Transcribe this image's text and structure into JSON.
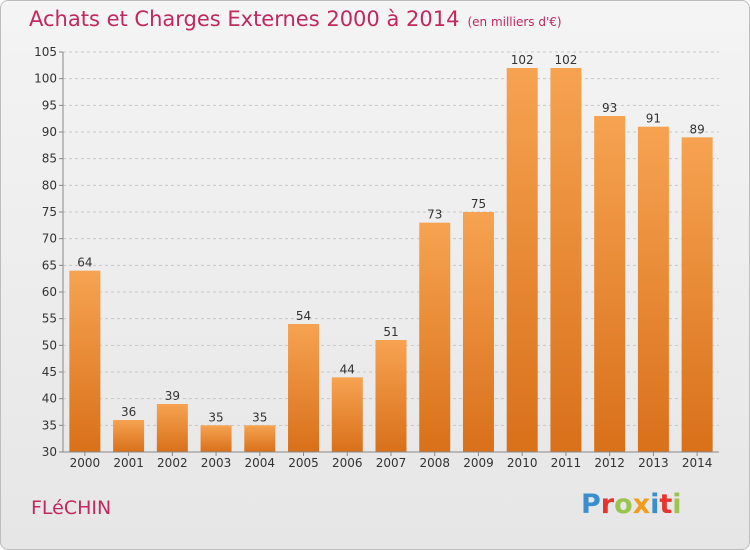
{
  "title": "Achats et Charges Externes 2000 à 2014",
  "unit_note": "(en milliers d'€)",
  "commune": "FLéCHIN",
  "logo": {
    "text": "Proxiti",
    "colors": [
      "#3a8ecc",
      "#e7322e",
      "#9ac44d",
      "#f29b1d",
      "#3a8ecc",
      "#e7322e",
      "#9ac44d"
    ]
  },
  "colors": {
    "title": "#c0285f",
    "bar_top": "#f6a351",
    "bar_bottom": "#d9701a"
  },
  "chart_data": {
    "type": "bar",
    "categories": [
      "2000",
      "2001",
      "2002",
      "2003",
      "2004",
      "2005",
      "2006",
      "2007",
      "2008",
      "2009",
      "2010",
      "2011",
      "2012",
      "2013",
      "2014"
    ],
    "values": [
      64,
      36,
      39,
      35,
      35,
      54,
      44,
      51,
      73,
      75,
      102,
      102,
      93,
      91,
      89
    ],
    "ylim": [
      30,
      105
    ],
    "yticks": [
      30,
      35,
      40,
      45,
      50,
      55,
      60,
      65,
      70,
      75,
      80,
      85,
      90,
      95,
      100,
      105
    ],
    "grid": true
  }
}
